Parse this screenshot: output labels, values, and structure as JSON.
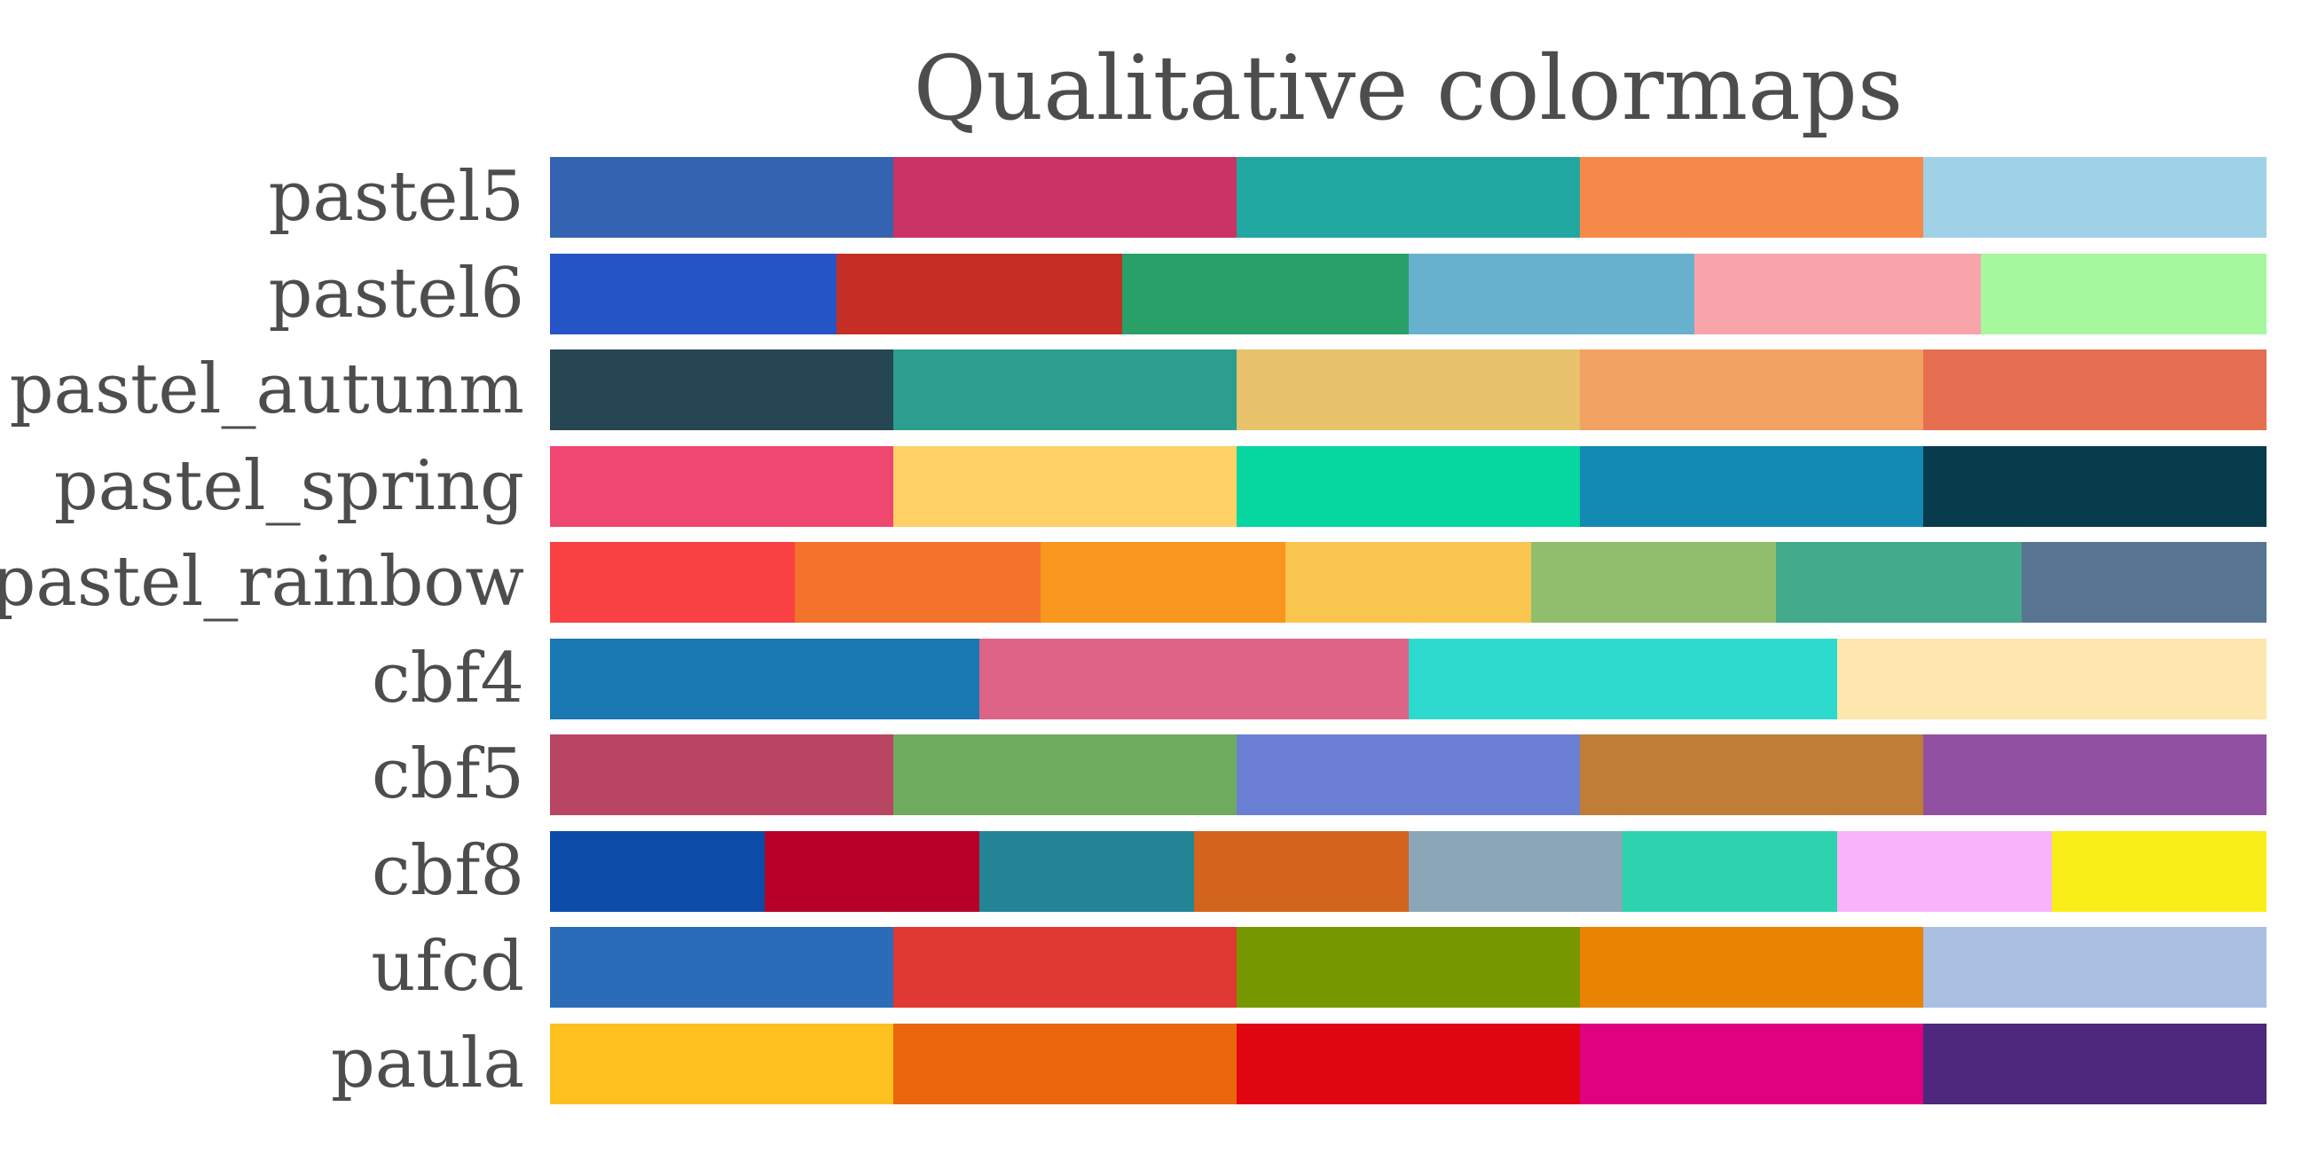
{
  "chart_data": {
    "type": "colormap-swatches",
    "title": "Qualitative colormaps",
    "colormaps": [
      {
        "name": "pastel5",
        "colors": [
          "#3463b1",
          "#cb3366",
          "#20a79f",
          "#f68949",
          "#9fd2e6"
        ]
      },
      {
        "name": "pastel6",
        "colors": [
          "#2554c7",
          "#c52e24",
          "#28a068",
          "#67b1cf",
          "#f8a4aa",
          "#a5f89e"
        ]
      },
      {
        "name": "pastel_autunm",
        "colors": [
          "#274653",
          "#2b9e8f",
          "#e8c36b",
          "#f2a262",
          "#e66f51"
        ]
      },
      {
        "name": "pastel_spring",
        "colors": [
          "#ef476f",
          "#fed066",
          "#06d6a0",
          "#128ab3",
          "#083b4c"
        ]
      },
      {
        "name": "pastel_rainbow",
        "colors": [
          "#f94143",
          "#f3722c",
          "#f8961e",
          "#f9c54f",
          "#91be6d",
          "#43aa8b",
          "#577590"
        ]
      },
      {
        "name": "cbf4",
        "colors": [
          "#1a78b2",
          "#dd6487",
          "#2ed9cd",
          "#fde7ae"
        ]
      },
      {
        "name": "cbf5",
        "colors": [
          "#b84562",
          "#6fab5f",
          "#6b7fd4",
          "#bf7d38",
          "#9250a2"
        ]
      },
      {
        "name": "cbf8",
        "colors": [
          "#0c4ba8",
          "#b60028",
          "#238495",
          "#d2641e",
          "#8ba7b7",
          "#2cd3ae",
          "#f9b3fa",
          "#f8ef18"
        ]
      },
      {
        "name": "ufcd",
        "colors": [
          "#2b6cb9",
          "#e03832",
          "#769700",
          "#e98301",
          "#a9c0e2"
        ]
      },
      {
        "name": "paula",
        "colors": [
          "#fdc11f",
          "#ea670c",
          "#df0511",
          "#df027f",
          "#4d287c"
        ]
      }
    ]
  }
}
